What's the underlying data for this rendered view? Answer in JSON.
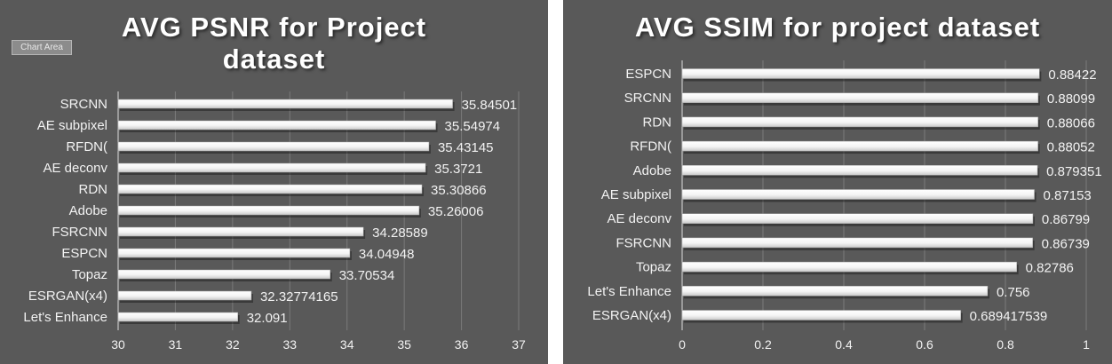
{
  "chart_data": [
    {
      "type": "bar",
      "orientation": "horizontal",
      "title": "AVG PSNR for Project dataset",
      "categories": [
        "SRCNN",
        "AE subpixel",
        "RFDN(",
        "AE deconv",
        "RDN",
        "Adobe",
        "FSRCNN",
        "ESPCN",
        "Topaz",
        "ESRGAN(x4)",
        "Let's Enhance"
      ],
      "values": [
        35.84501,
        35.54974,
        35.43145,
        35.3721,
        35.30866,
        35.26006,
        34.28589,
        34.04948,
        33.70534,
        32.32774165,
        32.091
      ],
      "value_labels": [
        "35.84501",
        "35.54974",
        "35.43145",
        "35.3721",
        "35.30866",
        "35.26006",
        "34.28589",
        "34.04948",
        "33.70534",
        "32.32774165",
        "32.091"
      ],
      "xlim": [
        30,
        37
      ],
      "ticks": [
        "30",
        "31",
        "32",
        "33",
        "34",
        "35",
        "36",
        "37"
      ],
      "grid": true,
      "legend": "none"
    },
    {
      "type": "bar",
      "orientation": "horizontal",
      "title": "AVG SSIM for project dataset",
      "categories": [
        "ESPCN",
        "SRCNN",
        "RDN",
        "RFDN(",
        "Adobe",
        "AE subpixel",
        "AE deconv",
        "FSRCNN",
        "Topaz",
        "Let's Enhance",
        "ESRGAN(x4)"
      ],
      "values": [
        0.88422,
        0.88099,
        0.88066,
        0.88052,
        0.879351,
        0.87153,
        0.86799,
        0.86739,
        0.82786,
        0.756,
        0.689417539
      ],
      "value_labels": [
        "0.88422",
        "0.88099",
        "0.88066",
        "0.88052",
        "0.879351",
        "0.87153",
        "0.86799",
        "0.86739",
        "0.82786",
        "0.756",
        "0.689417539"
      ],
      "xlim": [
        0,
        1
      ],
      "ticks": [
        "0",
        "0.2",
        "0.4",
        "0.6",
        "0.8",
        "1"
      ],
      "grid": true,
      "legend": "none"
    }
  ],
  "ui": {
    "chart_area_tag": "Chart Area",
    "background_color": "#595959",
    "bar_color": "#ffffff",
    "grid_color": "#7a7a7a",
    "text_color": "#f2f2f2"
  }
}
